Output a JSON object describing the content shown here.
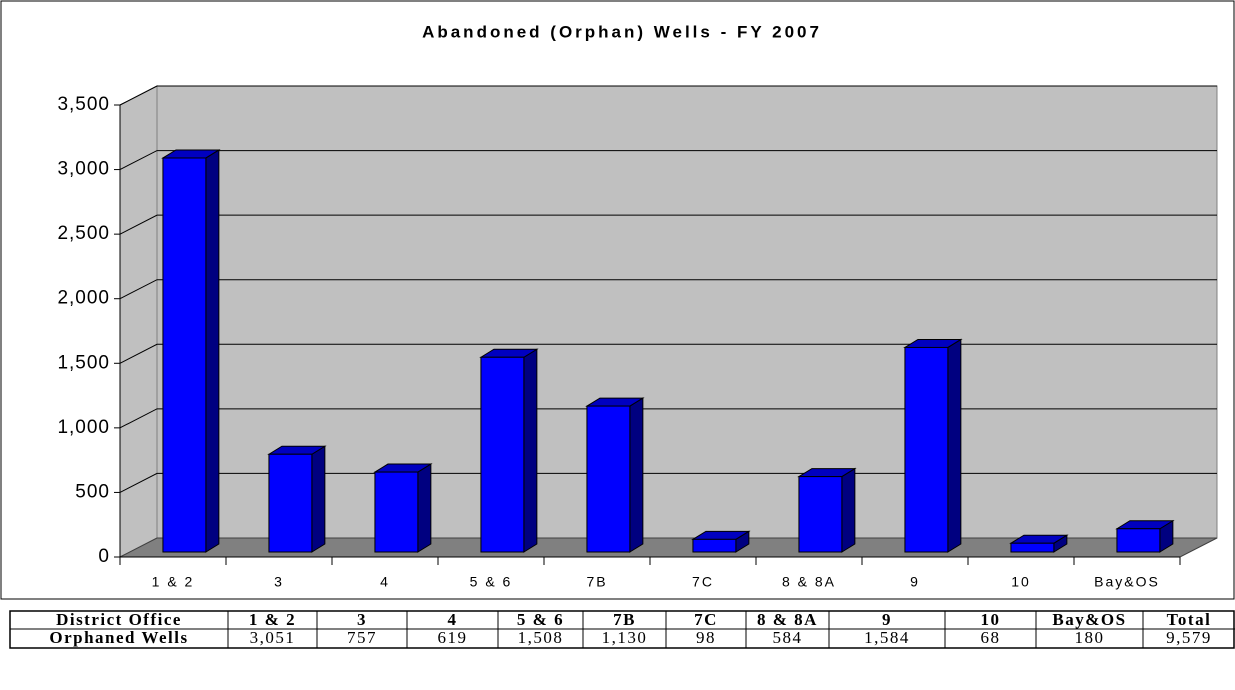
{
  "chart_data": {
    "type": "bar3d",
    "title": "Abandoned (Orphan) Wells - FY 2007",
    "categories": [
      "1 & 2",
      "3",
      "4",
      "5 & 6",
      "7B",
      "7C",
      "8 & 8A",
      "9",
      "10",
      "Bay&OS"
    ],
    "values": [
      3051,
      757,
      619,
      1508,
      1130,
      98,
      584,
      1584,
      68,
      180
    ],
    "value_labels": [
      "3,051",
      "757",
      "619",
      "1,508",
      "1,130",
      "98",
      "584",
      "1,584",
      "68",
      "180"
    ],
    "color": "#0000ff",
    "ylim": [
      0,
      3500
    ],
    "yticks": [
      0,
      500,
      {
        "value": 1000,
        "label": "1,000"
      },
      {
        "value": 1500,
        "label": "1,500"
      },
      {
        "value": 2000,
        "label": "2,000"
      },
      {
        "value": 2500,
        "label": "2,500"
      },
      {
        "value": 3000,
        "label": "3,000"
      },
      {
        "value": 3500,
        "label": "3,500"
      }
    ],
    "grid": true
  },
  "table": {
    "header_label": "District Office",
    "total_header": "Total",
    "row_label": "Orphaned Wells",
    "total": "9,579"
  }
}
